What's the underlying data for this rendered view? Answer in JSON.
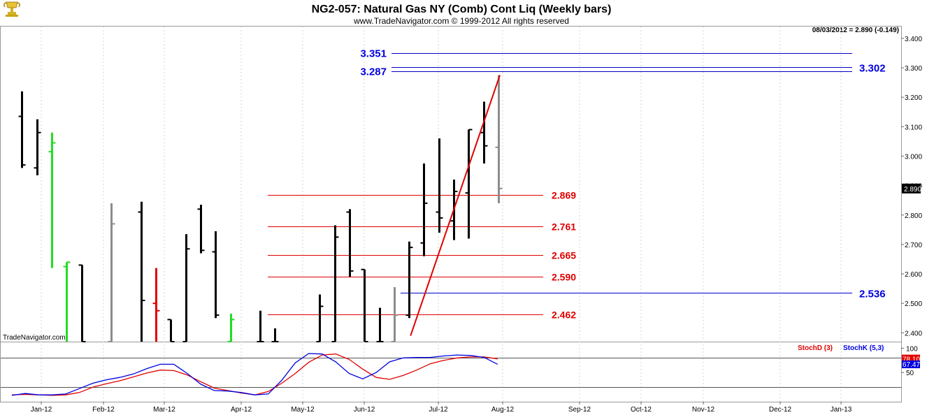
{
  "header": {
    "title": "NG2-057:  Natural Gas NY (Comb) Cont Liq  (Weekly bars)",
    "copyright": "www.TradeNavigator.com © 1999-2012 All rights reserved",
    "last_quote": "08/03/2012 = 2.890 (-0.149)",
    "watermark": "TradeNavigator.com",
    "logo_icon": "trophy-logo-icon"
  },
  "colors": {
    "up_bar": "#000000",
    "gray_bar": "#8c8c8c",
    "green_bar": "#22dd22",
    "red_bar": "#e00000",
    "retracement": "#e00000",
    "target": "#0000c8",
    "stoch_d": "#e00000",
    "stoch_k": "#0000e0"
  },
  "chart_data": [
    {
      "type": "ohlc",
      "title": "NG2-057:  Natural Gas NY (Comb) Cont Liq  (Weekly bars)",
      "ylim": [
        2.37,
        3.44
      ],
      "y_ticks": [
        "3.400",
        "3.300",
        "3.200",
        "3.100",
        "3.000",
        "2.900",
        "2.800",
        "2.700",
        "2.600",
        "2.500",
        "2.400"
      ],
      "x_ticks": [
        "Jan-12",
        "Feb-12",
        "Mar-12",
        "Apr-12",
        "May-12",
        "Jun-12",
        "Jul-12",
        "Aug-12",
        "Sep-12",
        "Oct-12",
        "Nov-12",
        "Dec-12",
        "Jan-13"
      ],
      "last_price_label": "2.890",
      "bars": [
        {
          "week": 1,
          "open": 3.135,
          "high": 3.22,
          "low": 2.96,
          "close": 2.97,
          "color": "black"
        },
        {
          "week": 2,
          "open": 2.96,
          "high": 3.125,
          "low": 2.935,
          "close": 3.08,
          "color": "black"
        },
        {
          "week": 3,
          "open": 3.015,
          "high": 3.08,
          "low": 2.62,
          "close": 3.045,
          "color": "green"
        },
        {
          "week": 4,
          "open": 2.625,
          "high": 2.64,
          "low": 2.37,
          "close": 2.64,
          "color": "green"
        },
        {
          "week": 5,
          "open": 2.63,
          "high": 2.63,
          "low": 2.37,
          "close": 2.37,
          "color": "black"
        },
        {
          "week": 7,
          "open": 2.37,
          "high": 2.84,
          "low": 2.37,
          "close": 2.77,
          "color": "gray"
        },
        {
          "week": 9,
          "open": 2.81,
          "high": 2.845,
          "low": 2.37,
          "close": 2.51,
          "color": "black"
        },
        {
          "week": 10,
          "open": 2.5,
          "high": 2.62,
          "low": 2.37,
          "close": 2.475,
          "color": "red"
        },
        {
          "week": 11,
          "open": 2.445,
          "high": 2.445,
          "low": 2.37,
          "close": 2.37,
          "color": "black"
        },
        {
          "week": 12,
          "open": 2.37,
          "high": 2.735,
          "low": 2.37,
          "close": 2.685,
          "color": "black"
        },
        {
          "week": 13,
          "open": 2.82,
          "high": 2.835,
          "low": 2.67,
          "close": 2.68,
          "color": "black"
        },
        {
          "week": 14,
          "open": 2.675,
          "high": 2.745,
          "low": 2.45,
          "close": 2.46,
          "color": "black"
        },
        {
          "week": 15,
          "open": 2.37,
          "high": 2.465,
          "low": 2.37,
          "close": 2.445,
          "color": "green"
        },
        {
          "week": 17,
          "open": 2.37,
          "high": 2.475,
          "low": 2.37,
          "close": 2.37,
          "color": "black"
        },
        {
          "week": 18,
          "open": 2.37,
          "high": 2.415,
          "low": 2.37,
          "close": 2.37,
          "color": "black"
        },
        {
          "week": 21,
          "open": 2.37,
          "high": 2.53,
          "low": 2.37,
          "close": 2.49,
          "color": "black"
        },
        {
          "week": 22,
          "open": 2.37,
          "high": 2.765,
          "low": 2.37,
          "close": 2.725,
          "color": "black"
        },
        {
          "week": 23,
          "open": 2.81,
          "high": 2.82,
          "low": 2.59,
          "close": 2.61,
          "color": "black"
        },
        {
          "week": 24,
          "open": 2.615,
          "high": 2.615,
          "low": 2.37,
          "close": 2.37,
          "color": "black"
        },
        {
          "week": 25,
          "open": 2.37,
          "high": 2.485,
          "low": 2.37,
          "close": 2.37,
          "color": "black"
        },
        {
          "week": 26,
          "open": 2.37,
          "high": 2.555,
          "low": 2.37,
          "close": 2.46,
          "color": "gray"
        },
        {
          "week": 27,
          "open": 2.46,
          "high": 2.71,
          "low": 2.45,
          "close": 2.69,
          "color": "black"
        },
        {
          "week": 28,
          "open": 2.705,
          "high": 2.975,
          "low": 2.66,
          "close": 2.84,
          "color": "black"
        },
        {
          "week": 29,
          "open": 2.81,
          "high": 3.06,
          "low": 2.74,
          "close": 2.79,
          "color": "black"
        },
        {
          "week": 30,
          "open": 2.78,
          "high": 2.92,
          "low": 2.715,
          "close": 2.88,
          "color": "black"
        },
        {
          "week": 31,
          "open": 2.875,
          "high": 3.09,
          "low": 2.72,
          "close": 3.09,
          "color": "black"
        },
        {
          "week": 32,
          "open": 3.08,
          "high": 3.185,
          "low": 2.975,
          "close": 3.035,
          "color": "black"
        },
        {
          "week": 33,
          "open": 3.03,
          "high": 3.275,
          "low": 2.84,
          "close": 2.89,
          "color": "gray"
        }
      ],
      "retracement_levels": [
        {
          "label": "2.869",
          "value": 2.869
        },
        {
          "label": "2.761",
          "value": 2.761
        },
        {
          "label": "2.665",
          "value": 2.665
        },
        {
          "label": "2.590",
          "value": 2.59
        },
        {
          "label": "2.462",
          "value": 2.462
        }
      ],
      "target_levels": [
        {
          "label": "3.351",
          "value": 3.351,
          "label_side": "left"
        },
        {
          "label": "3.287",
          "value": 3.287,
          "label_side": "left"
        },
        {
          "label": "3.302",
          "value": 3.302,
          "label_side": "right"
        },
        {
          "label": "2.536",
          "value": 2.536,
          "label_side": "right"
        }
      ],
      "trendline": {
        "from": {
          "week": 27.1,
          "value": 2.39
        },
        "to": {
          "week": 33.1,
          "value": 3.275
        }
      }
    },
    {
      "type": "line",
      "legend": [
        "StochD (3)",
        "StochK (5,3)"
      ],
      "ylim": [
        -10,
        112
      ],
      "y_ticks": [
        "100",
        "50"
      ],
      "reference_lines": [
        80,
        20
      ],
      "last_values": {
        "stoch_d": "78.10",
        "stoch_k": "67.47"
      },
      "series": [
        {
          "name": "StochD (3)",
          "points": [
            [
              1,
              4
            ],
            [
              2,
              5
            ],
            [
              3,
              4
            ],
            [
              4,
              3
            ],
            [
              5,
              4
            ],
            [
              6,
              9
            ],
            [
              7,
              20
            ],
            [
              8,
              27
            ],
            [
              9,
              33
            ],
            [
              10,
              41
            ],
            [
              11,
              49
            ],
            [
              12,
              55
            ],
            [
              13,
              54
            ],
            [
              14,
              45
            ],
            [
              15,
              31
            ],
            [
              16,
              18
            ],
            [
              17,
              13
            ],
            [
              18,
              8
            ],
            [
              19,
              4
            ],
            [
              20,
              11
            ],
            [
              21,
              28
            ],
            [
              22,
              48
            ],
            [
              23,
              71
            ],
            [
              24,
              86
            ],
            [
              25,
              88
            ],
            [
              26,
              77
            ],
            [
              27,
              57
            ],
            [
              28,
              40
            ],
            [
              29,
              36
            ],
            [
              30,
              44
            ],
            [
              31,
              55
            ],
            [
              32,
              68
            ],
            [
              33,
              75
            ],
            [
              34,
              80
            ],
            [
              35,
              82
            ],
            [
              36,
              82
            ],
            [
              37,
              78
            ]
          ]
        },
        {
          "name": "StochK (5,3)",
          "points": [
            [
              1,
              3
            ],
            [
              2,
              7
            ],
            [
              3,
              4
            ],
            [
              4,
              4
            ],
            [
              5,
              6
            ],
            [
              6,
              17
            ],
            [
              7,
              28
            ],
            [
              8,
              35
            ],
            [
              9,
              40
            ],
            [
              10,
              47
            ],
            [
              11,
              58
            ],
            [
              12,
              67
            ],
            [
              13,
              67
            ],
            [
              14,
              48
            ],
            [
              15,
              26
            ],
            [
              16,
              13
            ],
            [
              17,
              12
            ],
            [
              18,
              9
            ],
            [
              19,
              4
            ],
            [
              20,
              6
            ],
            [
              21,
              34
            ],
            [
              22,
              70
            ],
            [
              23,
              89
            ],
            [
              24,
              88
            ],
            [
              25,
              72
            ],
            [
              26,
              48
            ],
            [
              27,
              37
            ],
            [
              28,
              50
            ],
            [
              29,
              72
            ],
            [
              30,
              80
            ],
            [
              31,
              81
            ],
            [
              32,
              81
            ],
            [
              33,
              84
            ],
            [
              34,
              86
            ],
            [
              35,
              85
            ],
            [
              36,
              81
            ],
            [
              37,
              67
            ]
          ]
        }
      ]
    }
  ]
}
